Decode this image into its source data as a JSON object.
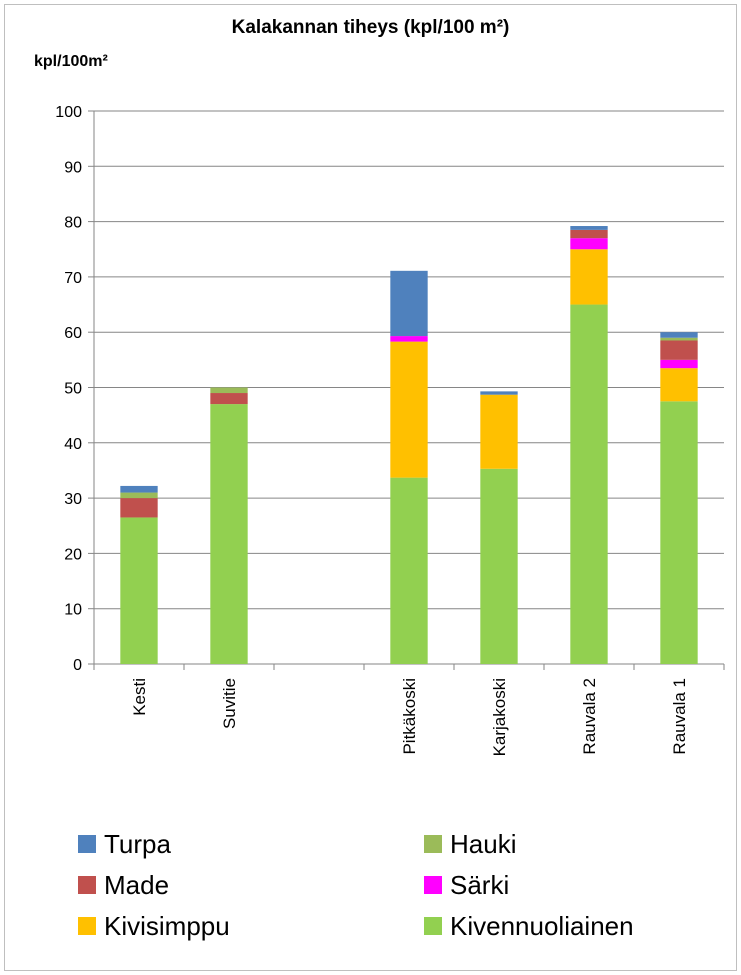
{
  "chart_data": {
    "type": "bar",
    "stacked": true,
    "title": "Kalakannan tiheys (kpl/100 m²)",
    "ylabel": "kpl/100m²",
    "ylim": [
      0,
      100
    ],
    "yticks": [
      0,
      10,
      20,
      30,
      40,
      50,
      60,
      70,
      80,
      90,
      100
    ],
    "categories": [
      "Kesti",
      "Suvitie",
      "",
      "Pitkäkoski",
      "Karjakoski",
      "Rauvala 2",
      "Rauvala 1"
    ],
    "series": [
      {
        "name": "Kivennuoliainen",
        "color": "#92d050",
        "values": [
          26.5,
          47,
          0,
          33.7,
          35.3,
          65,
          47.5
        ]
      },
      {
        "name": "Kivisimppu",
        "color": "#ffc000",
        "values": [
          0,
          0,
          0,
          24.6,
          13.4,
          10,
          6
        ]
      },
      {
        "name": "Särki",
        "color": "#ff00ff",
        "values": [
          0,
          0,
          0,
          1,
          0,
          2,
          1.5
        ]
      },
      {
        "name": "Made",
        "color": "#c0504d",
        "values": [
          3.5,
          2,
          0,
          0,
          0,
          1.5,
          3.5
        ]
      },
      {
        "name": "Hauki",
        "color": "#9bbb59",
        "values": [
          1,
          1,
          0,
          0,
          0,
          0,
          0.5
        ]
      },
      {
        "name": "Turpa",
        "color": "#4f81bd",
        "values": [
          1.2,
          0,
          0,
          11.8,
          0.6,
          0.7,
          1
        ]
      }
    ],
    "legend": {
      "position": "bottom",
      "order": [
        "Turpa",
        "Hauki",
        "Made",
        "Särki",
        "Kivisimppu",
        "Kivennuoliainen"
      ]
    },
    "grid": true
  }
}
